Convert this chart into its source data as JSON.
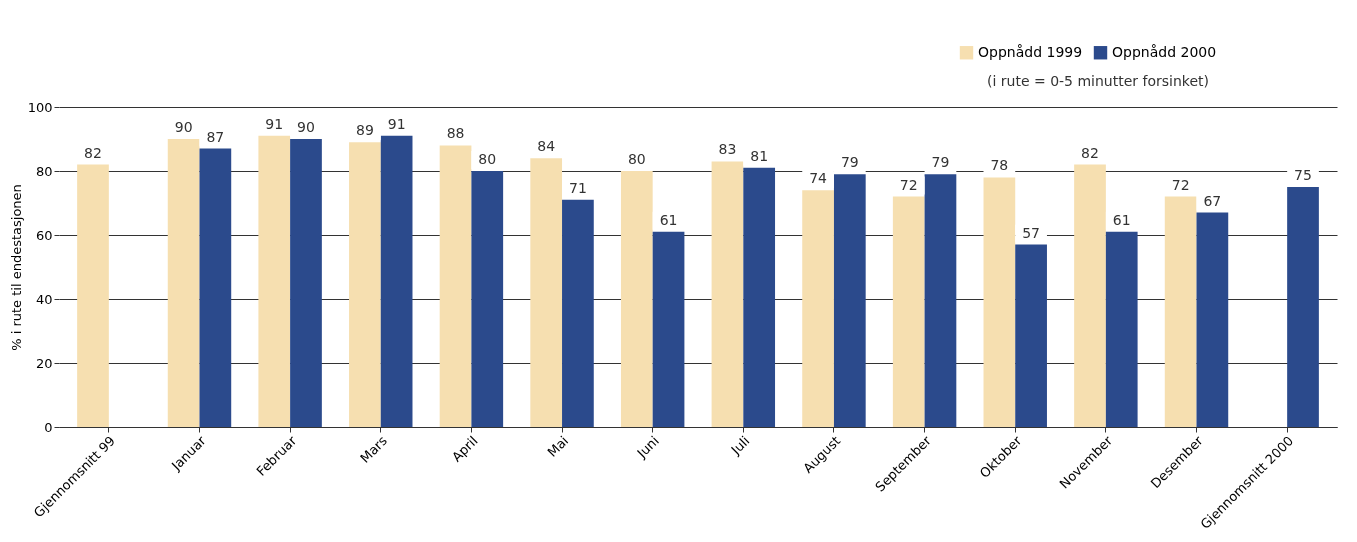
{
  "chart_data": {
    "type": "bar",
    "ylabel": "% i rute til endestasjonen",
    "categories": [
      "Gjennomsnitt 99",
      "Januar",
      "Februar",
      "Mars",
      "April",
      "Mai",
      "Juni",
      "Juli",
      "August",
      "September",
      "Oktober",
      "November",
      "Desember",
      "Gjennomsnitt 2000"
    ],
    "series": [
      {
        "name": "Oppnådd 1999",
        "color": "#f6dfb0",
        "values": [
          82,
          90,
          91,
          89,
          88,
          84,
          80,
          83,
          74,
          72,
          78,
          82,
          72,
          null
        ]
      },
      {
        "name": "Oppnådd 2000",
        "color": "#2b4a8c",
        "values": [
          null,
          87,
          90,
          91,
          80,
          71,
          61,
          81,
          79,
          79,
          57,
          61,
          67,
          75
        ]
      }
    ],
    "ylim": [
      0,
      100
    ],
    "yticks": [
      0,
      20,
      40,
      60,
      80,
      100
    ],
    "grid": "y",
    "legend": "top right",
    "data_labels": true,
    "annotations": [
      "(i rute = 0-5 minutter forsinket)"
    ]
  }
}
